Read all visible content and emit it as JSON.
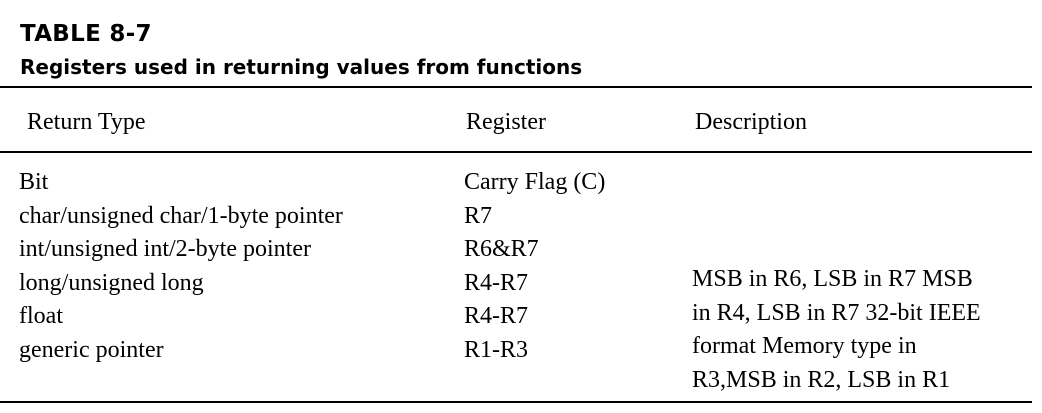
{
  "caption": {
    "number": "TABLE 8-7",
    "title": "Registers used in returning values from functions"
  },
  "table": {
    "headers": {
      "return_type": "Return Type",
      "register": "Register",
      "description": "Description"
    },
    "rows": [
      {
        "return_type": "Bit",
        "register": "Carry Flag (C)"
      },
      {
        "return_type": "char/unsigned char/1-byte pointer",
        "register": "R7"
      },
      {
        "return_type": "int/unsigned int/2-byte pointer",
        "register": "R6&R7"
      },
      {
        "return_type": "long/unsigned long",
        "register": "R4-R7"
      },
      {
        "return_type": "float",
        "register": "R4-R7"
      },
      {
        "return_type": "generic pointer",
        "register": "R1-R3"
      }
    ],
    "description_lines": [
      "MSB in R6, LSB in R7 MSB",
      "in R4, LSB in R7 32-bit IEEE",
      "format Memory type in",
      "R3,MSB in R2, LSB in R1"
    ]
  }
}
